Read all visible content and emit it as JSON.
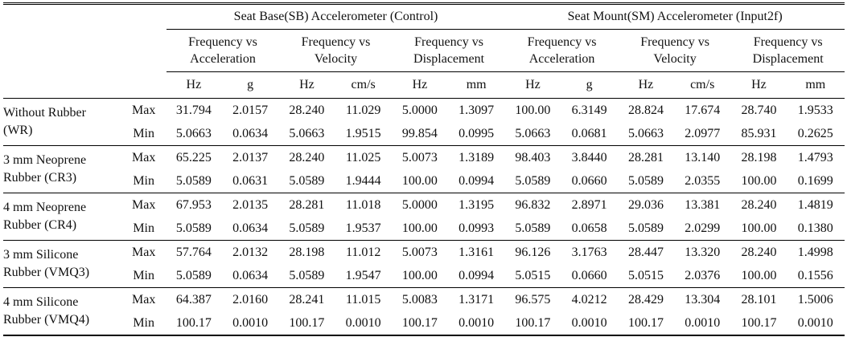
{
  "table": {
    "groups": [
      {
        "label": "Seat Base(SB) Accelerometer (Control)"
      },
      {
        "label": "Seat Mount(SM) Accelerometer (Input2f)"
      }
    ],
    "subheaders": [
      {
        "line1": "Frequency vs",
        "line2": "Acceleration"
      },
      {
        "line1": "Frequency vs",
        "line2": "Velocity"
      },
      {
        "line1": "Frequency vs",
        "line2": "Displacement"
      },
      {
        "line1": "Frequency vs",
        "line2": "Acceleration"
      },
      {
        "line1": "Frequency vs",
        "line2": "Velocity"
      },
      {
        "line1": "Frequency vs",
        "line2": "Displacement"
      }
    ],
    "units": [
      "Hz",
      "g",
      "Hz",
      "cm/s",
      "Hz",
      "mm",
      "Hz",
      "g",
      "Hz",
      "cm/s",
      "Hz",
      "mm"
    ],
    "rows": [
      {
        "line1": "Without Rubber",
        "line2": "(WR)",
        "max_label": "Max",
        "min_label": "Min",
        "max": [
          "31.794",
          "2.0157",
          "28.240",
          "11.029",
          "5.0000",
          "1.3097",
          "100.00",
          "6.3149",
          "28.824",
          "17.674",
          "28.740",
          "1.9533"
        ],
        "min": [
          "5.0663",
          "0.0634",
          "5.0663",
          "1.9515",
          "99.854",
          "0.0995",
          "5.0663",
          "0.0681",
          "5.0663",
          "2.0977",
          "85.931",
          "0.2625"
        ]
      },
      {
        "line1": "3 mm Neoprene",
        "line2": "Rubber (CR3)",
        "max_label": "Max",
        "min_label": "Min",
        "max": [
          "65.225",
          "2.0137",
          "28.240",
          "11.025",
          "5.0073",
          "1.3189",
          "98.403",
          "3.8440",
          "28.281",
          "13.140",
          "28.198",
          "1.4793"
        ],
        "min": [
          "5.0589",
          "0.0631",
          "5.0589",
          "1.9444",
          "100.00",
          "0.0994",
          "5.0589",
          "0.0660",
          "5.0589",
          "2.0355",
          "100.00",
          "0.1699"
        ]
      },
      {
        "line1": "4 mm Neoprene",
        "line2": "Rubber (CR4)",
        "max_label": "Max",
        "min_label": "Min",
        "max": [
          "67.953",
          "2.0135",
          "28.281",
          "11.018",
          "5.0000",
          "1.3195",
          "96.832",
          "2.8971",
          "29.036",
          "13.381",
          "28.240",
          "1.4819"
        ],
        "min": [
          "5.0589",
          "0.0634",
          "5.0589",
          "1.9537",
          "100.00",
          "0.0993",
          "5.0589",
          "0.0658",
          "5.0589",
          "2.0299",
          "100.00",
          "0.1380"
        ]
      },
      {
        "line1": "3 mm Silicone",
        "line2": "Rubber (VMQ3)",
        "max_label": "Max",
        "min_label": "Min",
        "max": [
          "57.764",
          "2.0132",
          "28.198",
          "11.012",
          "5.0073",
          "1.3161",
          "96.126",
          "3.1763",
          "28.447",
          "13.320",
          "28.240",
          "1.4998"
        ],
        "min": [
          "5.0589",
          "0.0634",
          "5.0589",
          "1.9547",
          "100.00",
          "0.0994",
          "5.0515",
          "0.0660",
          "5.0515",
          "2.0376",
          "100.00",
          "0.1556"
        ]
      },
      {
        "line1": "4 mm Silicone",
        "line2": "Rubber (VMQ4)",
        "max_label": "Max",
        "min_label": "Min",
        "max": [
          "64.387",
          "2.0160",
          "28.241",
          "11.015",
          "5.0083",
          "1.3171",
          "96.575",
          "4.0212",
          "28.429",
          "13.304",
          "28.101",
          "1.5006"
        ],
        "min": [
          "100.17",
          "0.0010",
          "100.17",
          "0.0010",
          "100.17",
          "0.0010",
          "100.17",
          "0.0010",
          "100.17",
          "0.0010",
          "100.17",
          "0.0010"
        ]
      }
    ]
  }
}
